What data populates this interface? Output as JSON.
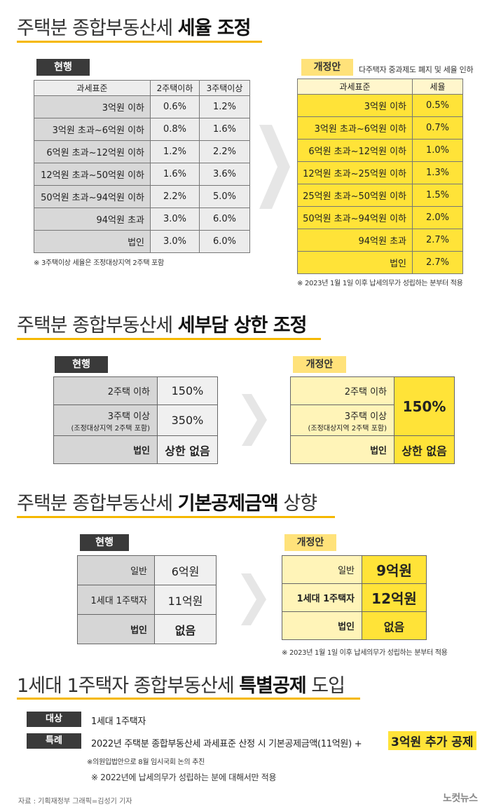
{
  "section1": {
    "title_plain": "주택분 종합부동산세 ",
    "title_bold": "세율 조정",
    "current_badge": "현행",
    "proposal_badge": "개정안",
    "proposal_caption": "다주택자 중과제도 폐지 및 세율 인하",
    "current_table": {
      "headers": [
        "과세표준",
        "2주택이하",
        "3주택이상"
      ],
      "rows": [
        [
          "3억원 이하",
          "0.6%",
          "1.2%"
        ],
        [
          "3억원 초과~6억원 이하",
          "0.8%",
          "1.6%"
        ],
        [
          "6억원 초과~12억원 이하",
          "1.2%",
          "2.2%"
        ],
        [
          "12억원 초과~50억원 이하",
          "1.6%",
          "3.6%"
        ],
        [
          "50억원 초과~94억원 이하",
          "2.2%",
          "5.0%"
        ],
        [
          "94억원 초과",
          "3.0%",
          "6.0%"
        ],
        [
          "법인",
          "3.0%",
          "6.0%"
        ]
      ]
    },
    "current_note": "※ 3주택이상 세율은 조정대상지역 2주택 포함",
    "proposal_table": {
      "headers": [
        "과세표준",
        "세율"
      ],
      "rows": [
        [
          "3억원 이하",
          "0.5%"
        ],
        [
          "3억원 초과~6억원 이하",
          "0.7%"
        ],
        [
          "6억원 초과~12억원 이하",
          "1.0%"
        ],
        [
          "12억원 초과~25억원 이하",
          "1.3%"
        ],
        [
          "25억원 초과~50억원 이하",
          "1.5%"
        ],
        [
          "50억원 초과~94억원 이하",
          "2.0%"
        ],
        [
          "94억원 초과",
          "2.7%"
        ],
        [
          "법인",
          "2.7%"
        ]
      ]
    },
    "proposal_note": "※ 2023년 1월 1일 이후 납세의무가 성립하는 분부터 적용"
  },
  "section2": {
    "title_plain": "주택분 종합부동산세 ",
    "title_bold": "세부담 상한 조정",
    "current_badge": "현행",
    "proposal_badge": "개정안",
    "current": {
      "r1_label": "2주택 이하",
      "r1_value": "150%",
      "r2_label": "3주택 이상",
      "r2_sub": "(조정대상지역 2주택 포함)",
      "r2_value": "350%",
      "r3_label": "법인",
      "r3_value": "상한 없음"
    },
    "proposal": {
      "r1_label": "2주택 이하",
      "r2_label": "3주택 이상",
      "r2_sub": "(조정대상지역 2주택 포함)",
      "merged_value": "150%",
      "r3_label": "법인",
      "r3_value": "상한 없음"
    }
  },
  "section3": {
    "title_plain": "주택분 종합부동산세 ",
    "title_bold": "기본공제금액",
    "title_tail": " 상향",
    "current_badge": "현행",
    "proposal_badge": "개정안",
    "current": [
      {
        "label": "일반",
        "value": "6억원"
      },
      {
        "label": "1세대 1주택자",
        "value": "11억원"
      },
      {
        "label": "법인",
        "value": "없음"
      }
    ],
    "proposal": [
      {
        "label": "일반",
        "value": "9억원"
      },
      {
        "label": "1세대 1주택자",
        "value": "12억원"
      },
      {
        "label": "법인",
        "value": "없음"
      }
    ],
    "proposal_note": "※ 2023년 1월 1일 이후 납세의무가 성립하는 분부터 적용"
  },
  "section4": {
    "title_plain": "1세대 1주택자 종합부동산세 ",
    "title_bold": "특별공제",
    "title_tail": " 도입",
    "target_label": "대상",
    "target_text": "1세대 1주택자",
    "special_label": "특례",
    "special_text": "2022년 주택분 종합부동산세 과세표준 산정 시 기본공제금액(11억원) +",
    "special_highlight": "3억원 추가 공제",
    "note1": "※의원입법안으로 8월 임시국회 논의 추진",
    "note2": "※ 2022년에 납세의무가 성립하는 분에 대해서만 적용"
  },
  "footer": {
    "credit": "자료 : 기획재정부   그래픽=김성기 기자",
    "logo": "노컷뉴스"
  },
  "colors": {
    "accent_yellow": "#ffe338",
    "title_underline": "#f5b800",
    "badge_dark": "#3a3a3a"
  }
}
